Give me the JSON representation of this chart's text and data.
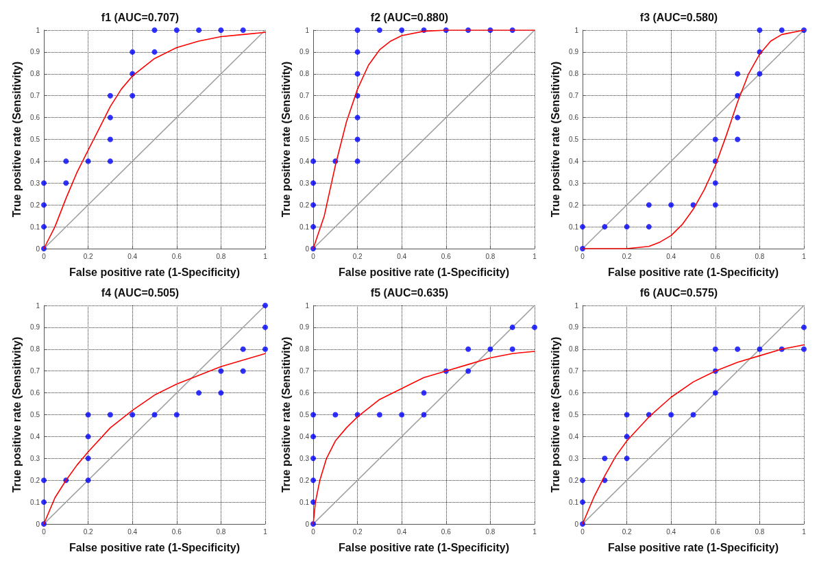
{
  "chart_data": [
    {
      "type": "scatter",
      "title": "f1 (AUC=0.707)",
      "xlabel": "False positive rate (1-Specificity)",
      "ylabel": "True positive rate (Sensitivity)",
      "xlim": [
        0,
        1
      ],
      "ylim": [
        0,
        1
      ],
      "xticks": [
        0,
        0.2,
        0.4,
        0.6,
        0.8,
        1
      ],
      "yticks": [
        0,
        0.1,
        0.2,
        0.3,
        0.4,
        0.5,
        0.6,
        0.7,
        0.8,
        0.9,
        1
      ],
      "grid": true,
      "series": [
        {
          "type": "line",
          "color": "#a0a0a0",
          "marker": "none",
          "line_style": "solid",
          "x": [
            0,
            1
          ],
          "values": [
            0,
            1
          ]
        },
        {
          "type": "scatter",
          "color": "#0000ff",
          "marker": "circle",
          "x": [
            0,
            0,
            0,
            0,
            0.1,
            0.1,
            0.2,
            0.3,
            0.3,
            0.3,
            0.3,
            0.4,
            0.4,
            0.4,
            0.5,
            0.5,
            0.6,
            0.7,
            0.8,
            0.9
          ],
          "values": [
            0,
            0.1,
            0.2,
            0.3,
            0.3,
            0.4,
            0.4,
            0.4,
            0.5,
            0.6,
            0.7,
            0.7,
            0.8,
            0.9,
            0.9,
            1,
            1,
            1,
            1,
            1
          ]
        },
        {
          "type": "line",
          "color": "#ff0000",
          "marker": "none",
          "line_style": "solid",
          "x": [
            0,
            0.05,
            0.1,
            0.15,
            0.2,
            0.25,
            0.3,
            0.35,
            0.4,
            0.5,
            0.6,
            0.7,
            0.8,
            0.9,
            1
          ],
          "values": [
            0,
            0.1,
            0.23,
            0.35,
            0.45,
            0.55,
            0.65,
            0.73,
            0.79,
            0.87,
            0.92,
            0.95,
            0.97,
            0.98,
            0.99
          ]
        }
      ]
    },
    {
      "type": "scatter",
      "title": "f2 (AUC=0.880)",
      "xlabel": "False positive rate (1-Specificity)",
      "ylabel": "True positive rate (Sensitivity)",
      "xlim": [
        0,
        1
      ],
      "ylim": [
        0,
        1
      ],
      "xticks": [
        0,
        0.2,
        0.4,
        0.6,
        0.8,
        1
      ],
      "yticks": [
        0,
        0.1,
        0.2,
        0.3,
        0.4,
        0.5,
        0.6,
        0.7,
        0.8,
        0.9,
        1
      ],
      "grid": true,
      "series": [
        {
          "type": "line",
          "color": "#a0a0a0",
          "marker": "none",
          "line_style": "solid",
          "x": [
            0,
            1
          ],
          "values": [
            0,
            1
          ]
        },
        {
          "type": "scatter",
          "color": "#0000ff",
          "marker": "circle",
          "x": [
            0,
            0,
            0,
            0,
            0,
            0.1,
            0.2,
            0.2,
            0.2,
            0.2,
            0.2,
            0.2,
            0.2,
            0.3,
            0.4,
            0.5,
            0.6,
            0.7,
            0.8,
            0.9
          ],
          "values": [
            0,
            0.1,
            0.2,
            0.3,
            0.4,
            0.4,
            0.4,
            0.5,
            0.6,
            0.7,
            0.8,
            0.9,
            1,
            1,
            1,
            1,
            1,
            1,
            1,
            1
          ]
        },
        {
          "type": "line",
          "color": "#ff0000",
          "marker": "none",
          "line_style": "solid",
          "x": [
            0,
            0.05,
            0.1,
            0.15,
            0.2,
            0.25,
            0.3,
            0.35,
            0.4,
            0.5,
            0.6,
            1
          ],
          "values": [
            0,
            0.15,
            0.38,
            0.58,
            0.73,
            0.84,
            0.91,
            0.95,
            0.975,
            0.995,
            1,
            1
          ]
        }
      ]
    },
    {
      "type": "scatter",
      "title": "f3 (AUC=0.580)",
      "xlabel": "False positive rate (1-Specificity)",
      "ylabel": "True positive rate (Sensitivity)",
      "xlim": [
        0,
        1
      ],
      "ylim": [
        0,
        1
      ],
      "xticks": [
        0,
        0.2,
        0.4,
        0.6,
        0.8,
        1
      ],
      "yticks": [
        0,
        0.1,
        0.2,
        0.3,
        0.4,
        0.5,
        0.6,
        0.7,
        0.8,
        0.9,
        1
      ],
      "grid": true,
      "series": [
        {
          "type": "line",
          "color": "#a0a0a0",
          "marker": "none",
          "line_style": "solid",
          "x": [
            0,
            1
          ],
          "values": [
            0,
            1
          ]
        },
        {
          "type": "scatter",
          "color": "#0000ff",
          "marker": "circle",
          "x": [
            0,
            0,
            0.1,
            0.2,
            0.3,
            0.3,
            0.4,
            0.5,
            0.6,
            0.6,
            0.6,
            0.6,
            0.7,
            0.7,
            0.7,
            0.7,
            0.8,
            0.8,
            0.8,
            0.9,
            1
          ],
          "values": [
            0,
            0.1,
            0.1,
            0.1,
            0.1,
            0.2,
            0.2,
            0.2,
            0.2,
            0.3,
            0.4,
            0.5,
            0.5,
            0.6,
            0.7,
            0.8,
            0.8,
            0.9,
            1,
            1,
            1
          ]
        },
        {
          "type": "line",
          "color": "#ff0000",
          "marker": "none",
          "line_style": "solid",
          "x": [
            0,
            0.2,
            0.3,
            0.35,
            0.4,
            0.45,
            0.5,
            0.55,
            0.6,
            0.65,
            0.7,
            0.75,
            0.8,
            0.85,
            0.9,
            1
          ],
          "values": [
            0,
            0,
            0.01,
            0.03,
            0.06,
            0.11,
            0.18,
            0.27,
            0.38,
            0.52,
            0.67,
            0.8,
            0.89,
            0.95,
            0.98,
            1
          ]
        }
      ]
    },
    {
      "type": "scatter",
      "title": "f4 (AUC=0.505)",
      "xlabel": "False positive rate (1-Specificity)",
      "ylabel": "True positive rate (Sensitivity)",
      "xlim": [
        0,
        1
      ],
      "ylim": [
        0,
        1
      ],
      "xticks": [
        0,
        0.2,
        0.4,
        0.6,
        0.8,
        1
      ],
      "yticks": [
        0,
        0.1,
        0.2,
        0.3,
        0.4,
        0.5,
        0.6,
        0.7,
        0.8,
        0.9,
        1
      ],
      "grid": true,
      "series": [
        {
          "type": "line",
          "color": "#a0a0a0",
          "marker": "none",
          "line_style": "solid",
          "x": [
            0,
            1
          ],
          "values": [
            0,
            1
          ]
        },
        {
          "type": "scatter",
          "color": "#0000ff",
          "marker": "circle",
          "x": [
            0,
            0,
            0,
            0.1,
            0.2,
            0.2,
            0.2,
            0.2,
            0.3,
            0.4,
            0.5,
            0.6,
            0.7,
            0.8,
            0.8,
            0.9,
            0.9,
            1,
            1,
            1
          ],
          "values": [
            0,
            0.1,
            0.2,
            0.2,
            0.2,
            0.3,
            0.4,
            0.5,
            0.5,
            0.5,
            0.5,
            0.5,
            0.6,
            0.6,
            0.7,
            0.7,
            0.8,
            0.8,
            0.9,
            1
          ]
        },
        {
          "type": "line",
          "color": "#ff0000",
          "marker": "none",
          "line_style": "solid",
          "x": [
            0,
            0.05,
            0.1,
            0.15,
            0.2,
            0.3,
            0.4,
            0.5,
            0.6,
            0.7,
            0.8,
            0.9,
            1
          ],
          "values": [
            0,
            0.12,
            0.2,
            0.27,
            0.33,
            0.44,
            0.52,
            0.59,
            0.64,
            0.68,
            0.72,
            0.75,
            0.78
          ]
        }
      ]
    },
    {
      "type": "scatter",
      "title": "f5 (AUC=0.635)",
      "xlabel": "False positive rate (1-Specificity)",
      "ylabel": "True positive rate (Sensitivity)",
      "xlim": [
        0,
        1
      ],
      "ylim": [
        0,
        1
      ],
      "xticks": [
        0,
        0.2,
        0.4,
        0.6,
        0.8,
        1
      ],
      "yticks": [
        0,
        0.1,
        0.2,
        0.3,
        0.4,
        0.5,
        0.6,
        0.7,
        0.8,
        0.9,
        1
      ],
      "grid": true,
      "series": [
        {
          "type": "line",
          "color": "#a0a0a0",
          "marker": "none",
          "line_style": "solid",
          "x": [
            0,
            1
          ],
          "values": [
            0,
            1
          ]
        },
        {
          "type": "scatter",
          "color": "#0000ff",
          "marker": "circle",
          "x": [
            0,
            0,
            0,
            0,
            0,
            0,
            0.1,
            0.2,
            0.3,
            0.4,
            0.5,
            0.5,
            0.6,
            0.7,
            0.7,
            0.8,
            0.9,
            0.9,
            1
          ],
          "values": [
            0,
            0.1,
            0.2,
            0.3,
            0.4,
            0.5,
            0.5,
            0.5,
            0.5,
            0.5,
            0.5,
            0.6,
            0.7,
            0.7,
            0.8,
            0.8,
            0.8,
            0.9,
            0.9
          ]
        },
        {
          "type": "line",
          "color": "#ff0000",
          "marker": "none",
          "line_style": "solid",
          "x": [
            0,
            0.01,
            0.03,
            0.06,
            0.1,
            0.15,
            0.2,
            0.3,
            0.4,
            0.5,
            0.6,
            0.7,
            0.8,
            0.9,
            1
          ],
          "values": [
            0,
            0.1,
            0.2,
            0.3,
            0.38,
            0.44,
            0.49,
            0.57,
            0.62,
            0.67,
            0.7,
            0.73,
            0.76,
            0.78,
            0.79
          ]
        }
      ]
    },
    {
      "type": "scatter",
      "title": "f6 (AUC=0.575)",
      "xlabel": "False positive rate (1-Specificity)",
      "ylabel": "True positive rate (Sensitivity)",
      "xlim": [
        0,
        1
      ],
      "ylim": [
        0,
        1
      ],
      "xticks": [
        0,
        0.2,
        0.4,
        0.6,
        0.8,
        1
      ],
      "yticks": [
        0,
        0.1,
        0.2,
        0.3,
        0.4,
        0.5,
        0.6,
        0.7,
        0.8,
        0.9,
        1
      ],
      "grid": true,
      "series": [
        {
          "type": "line",
          "color": "#a0a0a0",
          "marker": "none",
          "line_style": "solid",
          "x": [
            0,
            1
          ],
          "values": [
            0,
            1
          ]
        },
        {
          "type": "scatter",
          "color": "#0000ff",
          "marker": "circle",
          "x": [
            0,
            0,
            0,
            0.1,
            0.1,
            0.2,
            0.2,
            0.2,
            0.3,
            0.4,
            0.5,
            0.6,
            0.6,
            0.6,
            0.7,
            0.8,
            0.9,
            1,
            1
          ],
          "values": [
            0,
            0.1,
            0.2,
            0.2,
            0.3,
            0.3,
            0.4,
            0.5,
            0.5,
            0.5,
            0.5,
            0.6,
            0.7,
            0.8,
            0.8,
            0.8,
            0.8,
            0.8,
            0.9
          ]
        },
        {
          "type": "line",
          "color": "#ff0000",
          "marker": "none",
          "line_style": "solid",
          "x": [
            0,
            0.05,
            0.1,
            0.15,
            0.2,
            0.3,
            0.4,
            0.5,
            0.6,
            0.7,
            0.8,
            0.9,
            1
          ],
          "values": [
            0,
            0.12,
            0.22,
            0.31,
            0.38,
            0.49,
            0.58,
            0.65,
            0.7,
            0.74,
            0.77,
            0.8,
            0.82
          ]
        }
      ]
    }
  ]
}
